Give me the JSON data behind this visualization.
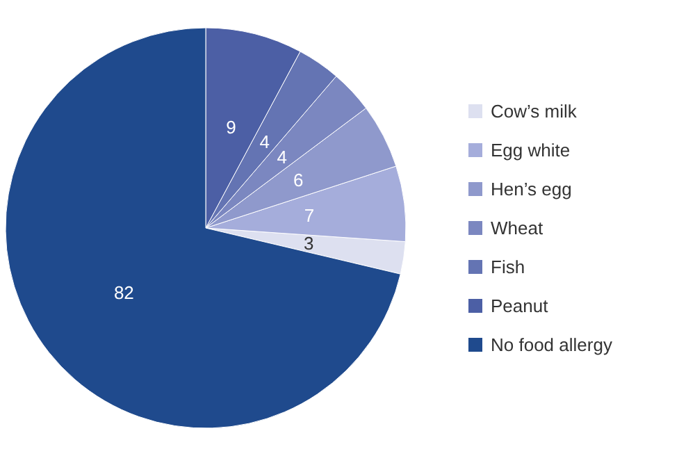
{
  "chart_data": {
    "type": "pie",
    "categories": [
      "Cow’s milk",
      "Egg white",
      "Hen’s egg",
      "Wheat",
      "Fish",
      "Peanut",
      "No food allergy"
    ],
    "values": [
      3,
      7,
      6,
      4,
      4,
      9,
      82
    ],
    "colors": [
      "#dde0f0",
      "#a5addb",
      "#8f99cc",
      "#7b87c0",
      "#6474b3",
      "#4c5fa5",
      "#1f4a8d"
    ],
    "data_labels": true,
    "legend": "right"
  }
}
